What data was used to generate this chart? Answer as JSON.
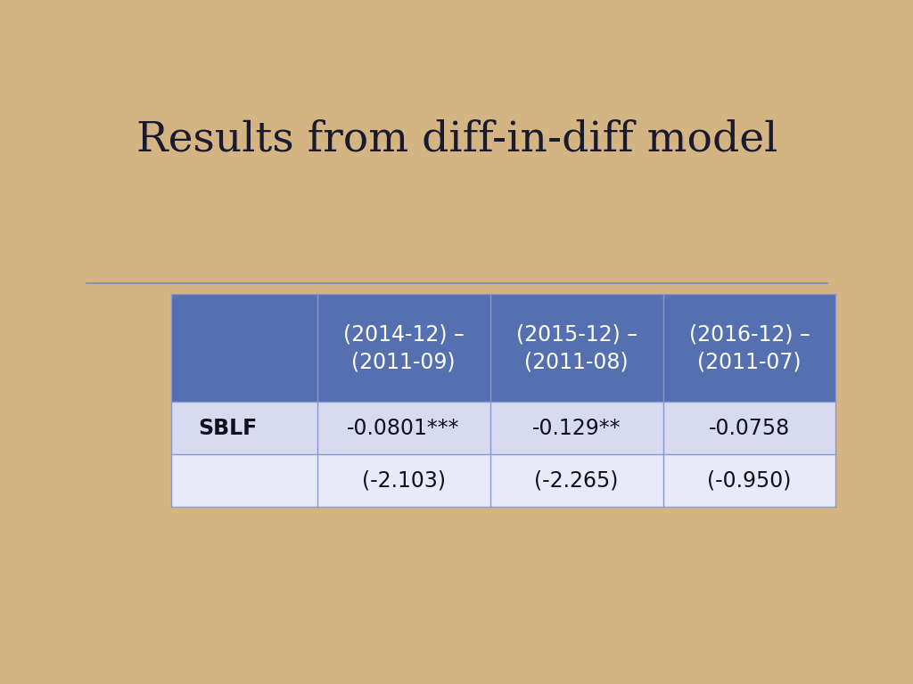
{
  "title": "Results from diff-in-diff model",
  "title_fontsize": 34,
  "title_font": "serif",
  "title_color": "#1a1a2e",
  "bg_outer": "#d4b483",
  "bg_slide": "#eeeef5",
  "border_color": "#4a5a8a",
  "bottom_bar_color": "#1e2554",
  "header_bg": "#5470b0",
  "header_text_color": "#ffffff",
  "row1_bg": "#d8daf0",
  "row2_bg": "#e8eaf8",
  "cell_border_color": "#8899cc",
  "col_headers": [
    "(2014-12) –\n(2011-09)",
    "(2015-12) –\n(2011-08)",
    "(2016-12) –\n(2011-07)"
  ],
  "row_label": "SBLF",
  "values_row1": [
    "-0.0801***",
    "-0.129**",
    "-0.0758"
  ],
  "values_row2": [
    "(-2.103)",
    "(-2.265)",
    "(-0.950)"
  ],
  "header_fontsize": 17,
  "cell_fontsize": 17,
  "row_label_fontsize": 17,
  "separator_color": "#7a8aaa",
  "dark_block_color": "#2e2018"
}
